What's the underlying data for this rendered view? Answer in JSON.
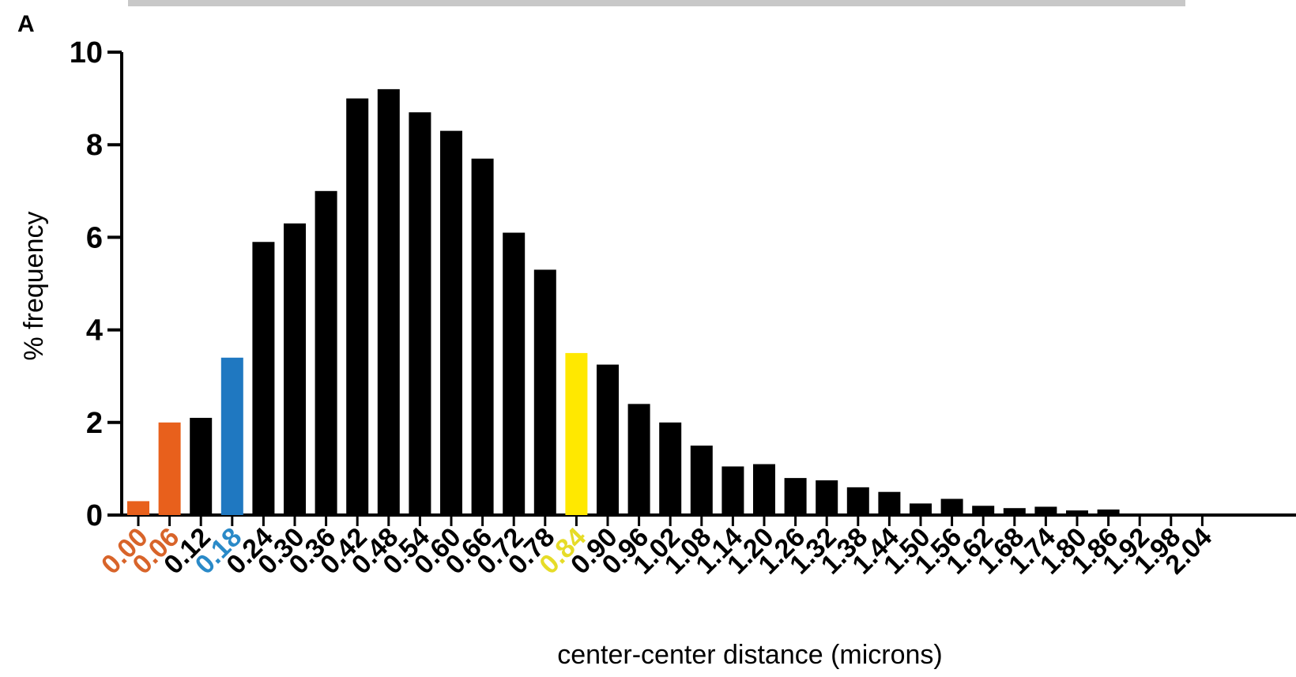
{
  "panel_label": "A",
  "chart_data": {
    "type": "bar",
    "xlabel": "center-center distance (microns)",
    "ylabel": "% frequency",
    "ylim": [
      0,
      10
    ],
    "yticks": [
      "0",
      "2",
      "4",
      "6",
      "8",
      "10"
    ],
    "categories": [
      "0.00",
      "0.06",
      "0.12",
      "0.18",
      "0.24",
      "0.30",
      "0.36",
      "0.42",
      "0.48",
      "0.54",
      "0.60",
      "0.66",
      "0.72",
      "0.78",
      "0.84",
      "0.90",
      "0.96",
      "1.02",
      "1.08",
      "1.14",
      "1.20",
      "1.26",
      "1.32",
      "1.38",
      "1.44",
      "1.50",
      "1.56",
      "1.62",
      "1.68",
      "1.74",
      "1.80",
      "1.86",
      "1.92",
      "1.98",
      "2.04"
    ],
    "values": [
      0.3,
      2.0,
      2.1,
      3.4,
      5.9,
      6.3,
      7.0,
      9.0,
      9.2,
      8.7,
      8.3,
      7.7,
      6.1,
      5.3,
      3.5,
      3.25,
      2.4,
      2.0,
      1.5,
      1.05,
      1.1,
      0.8,
      0.75,
      0.6,
      0.5,
      0.25,
      0.35,
      0.2,
      0.15,
      0.18,
      0.1,
      0.12,
      0.0,
      0.0,
      0.0
    ],
    "colors": {
      "default": "#000000",
      "orange": "#e8601c",
      "blue": "#1f78c1",
      "yellow": "#ffe800"
    },
    "highlight": {
      "0.00": "orange",
      "0.06": "orange",
      "0.18": "blue",
      "0.84": "yellow"
    },
    "label_colors": {
      "0.00": "#d8642a",
      "0.06": "#d8642a",
      "0.18": "#2a8ac8",
      "0.84": "#e6dc28"
    }
  }
}
